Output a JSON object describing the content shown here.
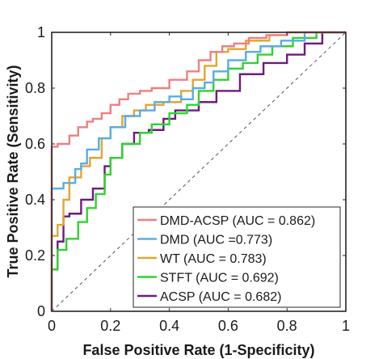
{
  "chart_data": {
    "type": "line",
    "title": "",
    "xlabel": "False Positive Rate (1-Specificity)",
    "ylabel": "True Positive Rate (Sensitivity)",
    "xlim": [
      0,
      1
    ],
    "ylim": [
      0,
      1
    ],
    "xticks": [
      "0",
      "0.2",
      "0.4",
      "0.6",
      "0.8",
      "1"
    ],
    "yticks": [
      "0",
      "0.2",
      "0.4",
      "0.6",
      "0.8",
      "1"
    ],
    "grid": false,
    "legend_position": "bottom-right",
    "reference_line": {
      "style": "dashed",
      "color": "#555555",
      "x": [
        0,
        1
      ],
      "y": [
        0,
        1
      ]
    },
    "series": [
      {
        "name": "DMD-ACSP (AUC = 0.862)",
        "color": "#ee7f80",
        "x": [
          0,
          0,
          0.02,
          0.02,
          0.06,
          0.06,
          0.09,
          0.09,
          0.12,
          0.12,
          0.14,
          0.14,
          0.17,
          0.17,
          0.2,
          0.2,
          0.23,
          0.23,
          0.26,
          0.26,
          0.3,
          0.3,
          0.34,
          0.34,
          0.4,
          0.4,
          0.46,
          0.46,
          0.5,
          0.5,
          0.54,
          0.54,
          0.58,
          0.58,
          0.62,
          0.62,
          0.67,
          0.67,
          0.73,
          0.73,
          0.8,
          0.8,
          0.86,
          0.86,
          1
        ],
        "y": [
          0,
          0.59,
          0.59,
          0.6,
          0.6,
          0.63,
          0.63,
          0.66,
          0.66,
          0.68,
          0.68,
          0.69,
          0.69,
          0.71,
          0.71,
          0.74,
          0.74,
          0.76,
          0.76,
          0.78,
          0.78,
          0.79,
          0.79,
          0.8,
          0.8,
          0.83,
          0.83,
          0.86,
          0.86,
          0.9,
          0.9,
          0.93,
          0.93,
          0.95,
          0.95,
          0.96,
          0.96,
          0.98,
          0.98,
          0.99,
          0.99,
          1,
          1,
          1,
          1
        ]
      },
      {
        "name": "DMD (AUC =0.773)",
        "color": "#57ade3",
        "x": [
          0,
          0,
          0.04,
          0.04,
          0.08,
          0.08,
          0.1,
          0.1,
          0.12,
          0.12,
          0.16,
          0.16,
          0.2,
          0.2,
          0.25,
          0.25,
          0.3,
          0.3,
          0.35,
          0.35,
          0.4,
          0.4,
          0.44,
          0.44,
          0.48,
          0.48,
          0.52,
          0.52,
          0.55,
          0.55,
          0.6,
          0.6,
          0.66,
          0.66,
          0.71,
          0.71,
          0.78,
          0.78,
          0.86,
          0.86,
          1
        ],
        "y": [
          0,
          0.44,
          0.44,
          0.46,
          0.46,
          0.51,
          0.51,
          0.53,
          0.53,
          0.58,
          0.58,
          0.62,
          0.62,
          0.66,
          0.66,
          0.7,
          0.7,
          0.72,
          0.72,
          0.75,
          0.75,
          0.77,
          0.77,
          0.76,
          0.76,
          0.8,
          0.8,
          0.82,
          0.82,
          0.86,
          0.86,
          0.9,
          0.9,
          0.93,
          0.93,
          0.95,
          0.95,
          0.97,
          0.97,
          1,
          1
        ]
      },
      {
        "name": "WT (AUC = 0.783)",
        "color": "#e2a531",
        "x": [
          0,
          0,
          0.02,
          0.02,
          0.04,
          0.04,
          0.06,
          0.06,
          0.1,
          0.1,
          0.13,
          0.13,
          0.17,
          0.17,
          0.2,
          0.2,
          0.24,
          0.24,
          0.28,
          0.28,
          0.32,
          0.32,
          0.38,
          0.38,
          0.44,
          0.44,
          0.48,
          0.48,
          0.52,
          0.52,
          0.56,
          0.56,
          0.6,
          0.6,
          0.66,
          0.66,
          0.74,
          0.74,
          0.8,
          0.8,
          0.9,
          0.9,
          1
        ],
        "y": [
          0,
          0.27,
          0.27,
          0.31,
          0.31,
          0.4,
          0.4,
          0.48,
          0.48,
          0.52,
          0.52,
          0.55,
          0.55,
          0.62,
          0.62,
          0.66,
          0.66,
          0.7,
          0.7,
          0.72,
          0.72,
          0.74,
          0.74,
          0.75,
          0.75,
          0.79,
          0.79,
          0.83,
          0.83,
          0.88,
          0.88,
          0.93,
          0.93,
          0.94,
          0.94,
          0.97,
          0.97,
          0.99,
          0.99,
          1,
          1,
          1,
          1
        ]
      },
      {
        "name": "STFT (AUC = 0.692)",
        "color": "#2fd32f",
        "x": [
          0,
          0,
          0.02,
          0.02,
          0.05,
          0.05,
          0.09,
          0.09,
          0.12,
          0.12,
          0.15,
          0.15,
          0.18,
          0.18,
          0.2,
          0.2,
          0.24,
          0.24,
          0.3,
          0.3,
          0.34,
          0.34,
          0.4,
          0.4,
          0.46,
          0.46,
          0.5,
          0.5,
          0.55,
          0.55,
          0.6,
          0.6,
          0.65,
          0.65,
          0.7,
          0.7,
          0.75,
          0.75,
          0.82,
          0.82,
          0.9,
          0.9,
          1
        ],
        "y": [
          0,
          0.15,
          0.15,
          0.22,
          0.22,
          0.26,
          0.26,
          0.32,
          0.32,
          0.37,
          0.37,
          0.42,
          0.42,
          0.49,
          0.49,
          0.55,
          0.55,
          0.6,
          0.6,
          0.64,
          0.64,
          0.67,
          0.67,
          0.71,
          0.71,
          0.74,
          0.74,
          0.79,
          0.79,
          0.83,
          0.83,
          0.87,
          0.87,
          0.89,
          0.89,
          0.92,
          0.92,
          0.95,
          0.95,
          0.98,
          0.98,
          1,
          1
        ]
      },
      {
        "name": "ACSP (AUC = 0.682)",
        "color": "#6e1a80",
        "x": [
          0,
          0,
          0.02,
          0.02,
          0.04,
          0.04,
          0.06,
          0.06,
          0.1,
          0.1,
          0.14,
          0.14,
          0.18,
          0.18,
          0.2,
          0.2,
          0.24,
          0.24,
          0.28,
          0.28,
          0.33,
          0.33,
          0.38,
          0.38,
          0.42,
          0.42,
          0.5,
          0.5,
          0.56,
          0.56,
          0.64,
          0.64,
          0.72,
          0.72,
          0.8,
          0.8,
          0.86,
          0.86,
          0.92,
          0.92,
          1
        ],
        "y": [
          0,
          0.15,
          0.15,
          0.25,
          0.25,
          0.34,
          0.34,
          0.35,
          0.35,
          0.4,
          0.4,
          0.44,
          0.44,
          0.52,
          0.52,
          0.55,
          0.55,
          0.6,
          0.6,
          0.64,
          0.64,
          0.65,
          0.65,
          0.69,
          0.69,
          0.72,
          0.72,
          0.75,
          0.75,
          0.79,
          0.79,
          0.85,
          0.85,
          0.89,
          0.89,
          0.92,
          0.92,
          0.96,
          0.96,
          1,
          1
        ]
      }
    ]
  }
}
